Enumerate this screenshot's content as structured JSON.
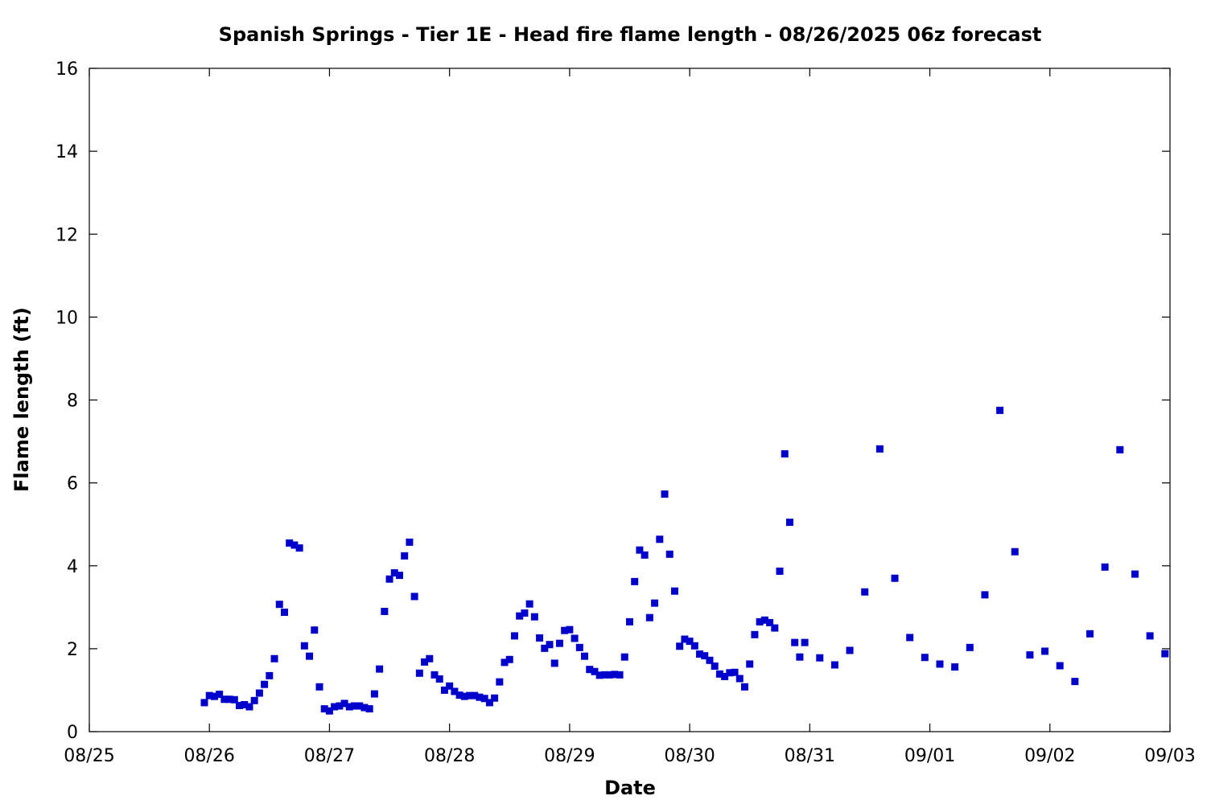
{
  "chart_data": {
    "type": "scatter",
    "title": "Spanish Springs - Tier 1E - Head fire flame length - 08/26/2025 06z forecast",
    "xlabel": "Date",
    "ylabel": "Flame length (ft)",
    "x_is_date": true,
    "xlim": [
      "2025-08-25 00:00",
      "2025-09-03 00:00"
    ],
    "ylim": [
      0,
      16
    ],
    "x_ticks": [
      "08/25",
      "08/26",
      "08/27",
      "08/28",
      "08/29",
      "08/30",
      "08/31",
      "09/01",
      "09/02",
      "09/03"
    ],
    "y_ticks": [
      "0",
      "2",
      "4",
      "6",
      "8",
      "10",
      "12",
      "14",
      "16"
    ],
    "grid": false,
    "legend": "none",
    "marker_color": "#0000cc",
    "series": [
      {
        "points": [
          [
            "2025-08-25 23:00",
            0.7
          ],
          [
            "2025-08-26 00:00",
            0.87
          ],
          [
            "2025-08-26 01:00",
            0.85
          ],
          [
            "2025-08-26 02:00",
            0.9
          ],
          [
            "2025-08-26 03:00",
            0.78
          ],
          [
            "2025-08-26 04:00",
            0.78
          ],
          [
            "2025-08-26 05:00",
            0.77
          ],
          [
            "2025-08-26 06:00",
            0.63
          ],
          [
            "2025-08-26 07:00",
            0.65
          ],
          [
            "2025-08-26 08:00",
            0.6
          ],
          [
            "2025-08-26 09:00",
            0.75
          ],
          [
            "2025-08-26 10:00",
            0.93
          ],
          [
            "2025-08-26 11:00",
            1.14
          ],
          [
            "2025-08-26 12:00",
            1.35
          ],
          [
            "2025-08-26 13:00",
            1.76
          ],
          [
            "2025-08-26 14:00",
            3.07
          ],
          [
            "2025-08-26 15:00",
            2.88
          ],
          [
            "2025-08-26 16:00",
            4.55
          ],
          [
            "2025-08-26 17:00",
            4.5
          ],
          [
            "2025-08-26 18:00",
            4.43
          ],
          [
            "2025-08-26 19:00",
            2.07
          ],
          [
            "2025-08-26 20:00",
            1.82
          ],
          [
            "2025-08-26 21:00",
            2.45
          ],
          [
            "2025-08-26 22:00",
            1.08
          ],
          [
            "2025-08-26 23:00",
            0.55
          ],
          [
            "2025-08-27 00:00",
            0.5
          ],
          [
            "2025-08-27 01:00",
            0.6
          ],
          [
            "2025-08-27 02:00",
            0.62
          ],
          [
            "2025-08-27 03:00",
            0.68
          ],
          [
            "2025-08-27 04:00",
            0.6
          ],
          [
            "2025-08-27 05:00",
            0.62
          ],
          [
            "2025-08-27 06:00",
            0.62
          ],
          [
            "2025-08-27 07:00",
            0.58
          ],
          [
            "2025-08-27 08:00",
            0.55
          ],
          [
            "2025-08-27 09:00",
            0.91
          ],
          [
            "2025-08-27 10:00",
            1.51
          ],
          [
            "2025-08-27 11:00",
            2.9
          ],
          [
            "2025-08-27 12:00",
            3.68
          ],
          [
            "2025-08-27 13:00",
            3.83
          ],
          [
            "2025-08-27 14:00",
            3.77
          ],
          [
            "2025-08-27 15:00",
            4.24
          ],
          [
            "2025-08-27 16:00",
            4.57
          ],
          [
            "2025-08-27 17:00",
            3.26
          ],
          [
            "2025-08-27 18:00",
            1.41
          ],
          [
            "2025-08-27 19:00",
            1.68
          ],
          [
            "2025-08-27 20:00",
            1.76
          ],
          [
            "2025-08-27 21:00",
            1.37
          ],
          [
            "2025-08-27 22:00",
            1.27
          ],
          [
            "2025-08-27 23:00",
            1.0
          ],
          [
            "2025-08-28 00:00",
            1.1
          ],
          [
            "2025-08-28 01:00",
            0.97
          ],
          [
            "2025-08-28 02:00",
            0.88
          ],
          [
            "2025-08-28 03:00",
            0.85
          ],
          [
            "2025-08-28 04:00",
            0.87
          ],
          [
            "2025-08-28 05:00",
            0.87
          ],
          [
            "2025-08-28 06:00",
            0.83
          ],
          [
            "2025-08-28 07:00",
            0.8
          ],
          [
            "2025-08-28 08:00",
            0.7
          ],
          [
            "2025-08-28 09:00",
            0.81
          ],
          [
            "2025-08-28 10:00",
            1.2
          ],
          [
            "2025-08-28 11:00",
            1.67
          ],
          [
            "2025-08-28 12:00",
            1.74
          ],
          [
            "2025-08-28 13:00",
            2.31
          ],
          [
            "2025-08-28 14:00",
            2.79
          ],
          [
            "2025-08-28 15:00",
            2.86
          ],
          [
            "2025-08-28 16:00",
            3.08
          ],
          [
            "2025-08-28 17:00",
            2.77
          ],
          [
            "2025-08-28 18:00",
            2.26
          ],
          [
            "2025-08-28 19:00",
            2.01
          ],
          [
            "2025-08-28 20:00",
            2.1
          ],
          [
            "2025-08-28 21:00",
            1.65
          ],
          [
            "2025-08-28 22:00",
            2.13
          ],
          [
            "2025-08-28 23:00",
            2.44
          ],
          [
            "2025-08-29 00:00",
            2.46
          ],
          [
            "2025-08-29 01:00",
            2.25
          ],
          [
            "2025-08-29 02:00",
            2.03
          ],
          [
            "2025-08-29 03:00",
            1.82
          ],
          [
            "2025-08-29 04:00",
            1.5
          ],
          [
            "2025-08-29 05:00",
            1.45
          ],
          [
            "2025-08-29 06:00",
            1.36
          ],
          [
            "2025-08-29 07:00",
            1.37
          ],
          [
            "2025-08-29 08:00",
            1.37
          ],
          [
            "2025-08-29 09:00",
            1.38
          ],
          [
            "2025-08-29 10:00",
            1.37
          ],
          [
            "2025-08-29 11:00",
            1.8
          ],
          [
            "2025-08-29 12:00",
            2.65
          ],
          [
            "2025-08-29 13:00",
            3.62
          ],
          [
            "2025-08-29 14:00",
            4.38
          ],
          [
            "2025-08-29 15:00",
            4.26
          ],
          [
            "2025-08-29 16:00",
            2.75
          ],
          [
            "2025-08-29 17:00",
            3.1
          ],
          [
            "2025-08-29 18:00",
            4.64
          ],
          [
            "2025-08-29 19:00",
            5.73
          ],
          [
            "2025-08-29 20:00",
            4.28
          ],
          [
            "2025-08-29 21:00",
            3.39
          ],
          [
            "2025-08-29 22:00",
            2.06
          ],
          [
            "2025-08-29 23:00",
            2.23
          ],
          [
            "2025-08-30 00:00",
            2.18
          ],
          [
            "2025-08-30 01:00",
            2.07
          ],
          [
            "2025-08-30 02:00",
            1.87
          ],
          [
            "2025-08-30 03:00",
            1.83
          ],
          [
            "2025-08-30 04:00",
            1.72
          ],
          [
            "2025-08-30 05:00",
            1.58
          ],
          [
            "2025-08-30 06:00",
            1.39
          ],
          [
            "2025-08-30 07:00",
            1.33
          ],
          [
            "2025-08-30 08:00",
            1.42
          ],
          [
            "2025-08-30 09:00",
            1.43
          ],
          [
            "2025-08-30 10:00",
            1.28
          ],
          [
            "2025-08-30 11:00",
            1.08
          ],
          [
            "2025-08-30 12:00",
            1.63
          ],
          [
            "2025-08-30 13:00",
            2.34
          ],
          [
            "2025-08-30 14:00",
            2.65
          ],
          [
            "2025-08-30 15:00",
            2.69
          ],
          [
            "2025-08-30 16:00",
            2.63
          ],
          [
            "2025-08-30 17:00",
            2.5
          ],
          [
            "2025-08-30 18:00",
            3.87
          ],
          [
            "2025-08-30 19:00",
            6.7
          ],
          [
            "2025-08-30 20:00",
            5.05
          ],
          [
            "2025-08-30 21:00",
            2.15
          ],
          [
            "2025-08-30 22:00",
            1.8
          ],
          [
            "2025-08-30 23:00",
            2.15
          ],
          [
            "2025-08-31 02:00",
            1.78
          ],
          [
            "2025-08-31 05:00",
            1.61
          ],
          [
            "2025-08-31 08:00",
            1.96
          ],
          [
            "2025-08-31 11:00",
            3.37
          ],
          [
            "2025-08-31 14:00",
            6.82
          ],
          [
            "2025-08-31 17:00",
            3.7
          ],
          [
            "2025-08-31 20:00",
            2.27
          ],
          [
            "2025-08-31 23:00",
            1.79
          ],
          [
            "2025-09-01 02:00",
            1.63
          ],
          [
            "2025-09-01 05:00",
            1.56
          ],
          [
            "2025-09-01 08:00",
            2.03
          ],
          [
            "2025-09-01 11:00",
            3.3
          ],
          [
            "2025-09-01 14:00",
            7.75
          ],
          [
            "2025-09-01 17:00",
            4.34
          ],
          [
            "2025-09-01 20:00",
            1.85
          ],
          [
            "2025-09-01 23:00",
            1.94
          ],
          [
            "2025-09-02 02:00",
            1.59
          ],
          [
            "2025-09-02 05:00",
            1.21
          ],
          [
            "2025-09-02 08:00",
            2.36
          ],
          [
            "2025-09-02 11:00",
            3.97
          ],
          [
            "2025-09-02 14:00",
            6.8
          ],
          [
            "2025-09-02 17:00",
            3.8
          ],
          [
            "2025-09-02 20:00",
            2.31
          ],
          [
            "2025-09-02 23:00",
            1.88
          ]
        ]
      }
    ]
  }
}
